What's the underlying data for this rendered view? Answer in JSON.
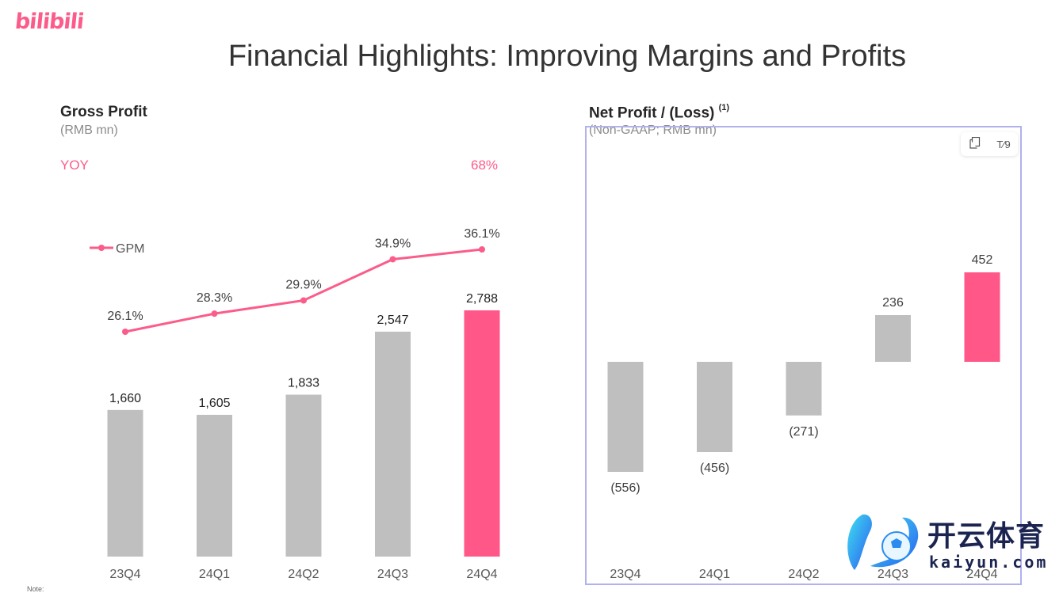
{
  "header": {
    "logo_text": "bilibili",
    "title": "Financial Highlights: Improving Margins and Profits"
  },
  "colors": {
    "accent": "#fb5c8a",
    "bar_gray": "#bfbfbf",
    "bar_highlight": "#ff5788",
    "text_dark": "#333333",
    "selection": "#b1b1f0"
  },
  "left_panel": {
    "title": "Gross Profit",
    "subtitle": "(RMB mn)",
    "yoy_label": "YOY",
    "yoy_value": "68%",
    "legend_label": "GPM"
  },
  "right_panel": {
    "title": "Net Profit / (Loss)",
    "title_note": "(1)",
    "subtitle": "(Non-GAAP; RMB mn)",
    "toolbar": {
      "copy_icon": "copy-icon",
      "text_icon": "text-format-icon",
      "text_glyph": "T⁄9"
    }
  },
  "footer": {
    "note_label": "Note:"
  },
  "watermark": {
    "cn_text": "开云体育",
    "en_text": "kaiyun.com"
  },
  "chart_data": [
    {
      "type": "bar",
      "title": "Gross Profit",
      "subtitle": "(RMB mn)",
      "categories": [
        "23Q4",
        "24Q1",
        "24Q2",
        "24Q3",
        "24Q4"
      ],
      "values": [
        1660,
        1605,
        1833,
        2547,
        2788
      ],
      "value_labels": [
        "1,660",
        "1,605",
        "1,833",
        "2,547",
        "2,788"
      ],
      "highlight_index": 4,
      "ylim": [
        0,
        3000
      ],
      "grid": false,
      "series": [
        {
          "name": "Gross Profit",
          "values": [
            1660,
            1605,
            1833,
            2547,
            2788
          ]
        },
        {
          "name": "GPM",
          "type": "line",
          "values": [
            26.1,
            28.3,
            29.9,
            34.9,
            36.1
          ],
          "value_labels": [
            "26.1%",
            "28.3%",
            "29.9%",
            "34.9%",
            "36.1%"
          ]
        }
      ],
      "legend": {
        "entries": [
          "GPM"
        ],
        "placement": "left"
      },
      "annotation": {
        "label": "YOY",
        "value": "68%"
      }
    },
    {
      "type": "bar",
      "title": "Net Profit / (Loss)",
      "subtitle": "(Non-GAAP; RMB mn)",
      "categories": [
        "23Q4",
        "24Q1",
        "24Q2",
        "24Q3",
        "24Q4"
      ],
      "values": [
        -556,
        -456,
        -271,
        236,
        452
      ],
      "value_labels": [
        "(556)",
        "(456)",
        "(271)",
        "236",
        "452"
      ],
      "highlight_index": 4,
      "ylim": [
        -600,
        500
      ],
      "grid": false
    }
  ]
}
